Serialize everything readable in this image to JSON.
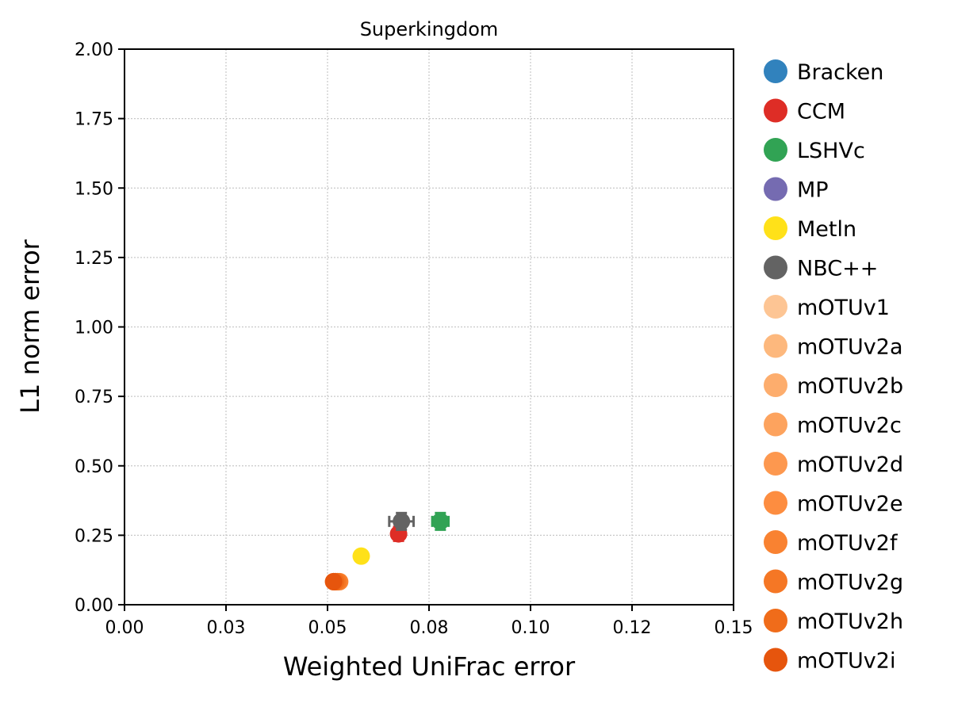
{
  "chart_data": {
    "type": "scatter",
    "title": "Superkingdom",
    "xlabel": "Weighted UniFrac error",
    "ylabel": "L1 norm error",
    "xlim": [
      0,
      0.15
    ],
    "ylim": [
      0,
      2.0
    ],
    "xticks": [
      0.0,
      0.025,
      0.05,
      0.075,
      0.1,
      0.125,
      0.15
    ],
    "xtick_labels": [
      "0.00",
      "0.03",
      "0.05",
      "0.08",
      "0.10",
      "0.12",
      "0.15"
    ],
    "yticks": [
      0.0,
      0.25,
      0.5,
      0.75,
      1.0,
      1.25,
      1.5,
      1.75,
      2.0
    ],
    "ytick_labels": [
      "0.00",
      "0.25",
      "0.50",
      "0.75",
      "1.00",
      "1.25",
      "1.50",
      "1.75",
      "2.00"
    ],
    "grid": true,
    "legend_position": "right-outside",
    "series": [
      {
        "name": "Bracken",
        "color": "#3182bd",
        "x": null,
        "y": null,
        "xerr": 0,
        "yerr": 0
      },
      {
        "name": "CCM",
        "color": "#de2d26",
        "x": 0.0675,
        "y": 0.255,
        "xerr": 0,
        "yerr": 0.025
      },
      {
        "name": "LSHVc",
        "color": "#31a354",
        "x": 0.0778,
        "y": 0.3,
        "xerr": 0.002,
        "yerr": 0.03
      },
      {
        "name": "MP",
        "color": "#756bb1",
        "x": null,
        "y": null,
        "xerr": 0,
        "yerr": 0
      },
      {
        "name": "Metln",
        "color": "#ffe119",
        "x": 0.0583,
        "y": 0.175,
        "xerr": 0,
        "yerr": 0
      },
      {
        "name": "NBC++",
        "color": "#636363",
        "x": 0.0682,
        "y": 0.3,
        "xerr": 0.003,
        "yerr": 0.03
      },
      {
        "name": "mOTUv1",
        "color": "#fdc594",
        "x": 0.0515,
        "y": 0.083,
        "xerr": 0.001,
        "yerr": 0
      },
      {
        "name": "mOTUv2a",
        "color": "#fdb87d",
        "x": 0.0515,
        "y": 0.083,
        "xerr": 0.001,
        "yerr": 0
      },
      {
        "name": "mOTUv2b",
        "color": "#fdad6d",
        "x": 0.0515,
        "y": 0.083,
        "xerr": 0.001,
        "yerr": 0
      },
      {
        "name": "mOTUv2c",
        "color": "#fda35e",
        "x": 0.052,
        "y": 0.083,
        "xerr": 0.001,
        "yerr": 0
      },
      {
        "name": "mOTUv2d",
        "color": "#fd984f",
        "x": 0.052,
        "y": 0.083,
        "xerr": 0.001,
        "yerr": 0
      },
      {
        "name": "mOTUv2e",
        "color": "#fd8d40",
        "x": 0.0525,
        "y": 0.083,
        "xerr": 0.001,
        "yerr": 0
      },
      {
        "name": "mOTUv2f",
        "color": "#f98231",
        "x": 0.053,
        "y": 0.083,
        "xerr": 0.001,
        "yerr": 0
      },
      {
        "name": "mOTUv2g",
        "color": "#f57725",
        "x": 0.0525,
        "y": 0.083,
        "xerr": 0.001,
        "yerr": 0
      },
      {
        "name": "mOTUv2h",
        "color": "#f06c1a",
        "x": 0.052,
        "y": 0.083,
        "xerr": 0.001,
        "yerr": 0
      },
      {
        "name": "mOTUv2i",
        "color": "#e6550d",
        "x": 0.0515,
        "y": 0.083,
        "xerr": 0.001,
        "yerr": 0
      }
    ]
  }
}
